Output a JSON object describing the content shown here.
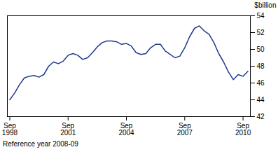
{
  "chart_data": {
    "type": "line",
    "ylabel": "$billion",
    "annotation": "Reference year 2008-09",
    "color": "#1F3A8F",
    "grid": false,
    "ylim": [
      42,
      54
    ],
    "yticks": [
      42,
      44,
      46,
      48,
      50,
      52,
      54
    ],
    "categories": [
      "Sep\n1998",
      null,
      null,
      null,
      null,
      null,
      null,
      null,
      null,
      null,
      null,
      null,
      "Sep\n2001",
      null,
      null,
      null,
      null,
      null,
      null,
      null,
      null,
      null,
      null,
      null,
      "Sep\n2004",
      null,
      null,
      null,
      null,
      null,
      null,
      null,
      null,
      null,
      null,
      null,
      "Sep\n2007",
      null,
      null,
      null,
      null,
      null,
      null,
      null,
      null,
      null,
      null,
      null,
      "Sep\n2010",
      null
    ],
    "values": [
      44.0,
      44.8,
      45.8,
      46.6,
      46.8,
      46.9,
      46.7,
      47.0,
      48.0,
      48.5,
      48.3,
      48.6,
      49.3,
      49.5,
      49.3,
      48.8,
      49.0,
      49.6,
      50.3,
      50.8,
      51.0,
      51.0,
      50.9,
      50.6,
      50.7,
      50.4,
      49.6,
      49.4,
      49.5,
      50.2,
      50.6,
      50.6,
      49.8,
      49.4,
      49.0,
      49.2,
      50.2,
      51.5,
      52.5,
      52.8,
      52.2,
      51.8,
      50.8,
      49.5,
      48.5,
      47.3,
      46.4,
      47.0,
      46.8,
      47.4
    ]
  }
}
